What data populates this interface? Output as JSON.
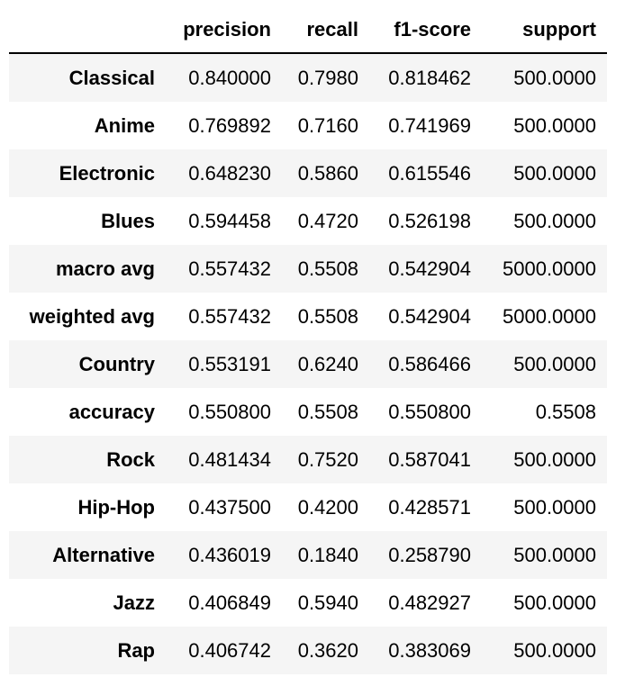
{
  "table": {
    "columns": [
      "",
      "precision",
      "recall",
      "f1-score",
      "support"
    ],
    "rows": [
      {
        "label": "Classical",
        "precision": "0.840000",
        "recall": "0.7980",
        "f1": "0.818462",
        "support": "500.0000"
      },
      {
        "label": "Anime",
        "precision": "0.769892",
        "recall": "0.7160",
        "f1": "0.741969",
        "support": "500.0000"
      },
      {
        "label": "Electronic",
        "precision": "0.648230",
        "recall": "0.5860",
        "f1": "0.615546",
        "support": "500.0000"
      },
      {
        "label": "Blues",
        "precision": "0.594458",
        "recall": "0.4720",
        "f1": "0.526198",
        "support": "500.0000"
      },
      {
        "label": "macro avg",
        "precision": "0.557432",
        "recall": "0.5508",
        "f1": "0.542904",
        "support": "5000.0000"
      },
      {
        "label": "weighted avg",
        "precision": "0.557432",
        "recall": "0.5508",
        "f1": "0.542904",
        "support": "5000.0000"
      },
      {
        "label": "Country",
        "precision": "0.553191",
        "recall": "0.6240",
        "f1": "0.586466",
        "support": "500.0000"
      },
      {
        "label": "accuracy",
        "precision": "0.550800",
        "recall": "0.5508",
        "f1": "0.550800",
        "support": "0.5508"
      },
      {
        "label": "Rock",
        "precision": "0.481434",
        "recall": "0.7520",
        "f1": "0.587041",
        "support": "500.0000"
      },
      {
        "label": "Hip-Hop",
        "precision": "0.437500",
        "recall": "0.4200",
        "f1": "0.428571",
        "support": "500.0000"
      },
      {
        "label": "Alternative",
        "precision": "0.436019",
        "recall": "0.1840",
        "f1": "0.258790",
        "support": "500.0000"
      },
      {
        "label": "Jazz",
        "precision": "0.406849",
        "recall": "0.5940",
        "f1": "0.482927",
        "support": "500.0000"
      },
      {
        "label": "Rap",
        "precision": "0.406742",
        "recall": "0.3620",
        "f1": "0.383069",
        "support": "500.0000"
      }
    ]
  }
}
